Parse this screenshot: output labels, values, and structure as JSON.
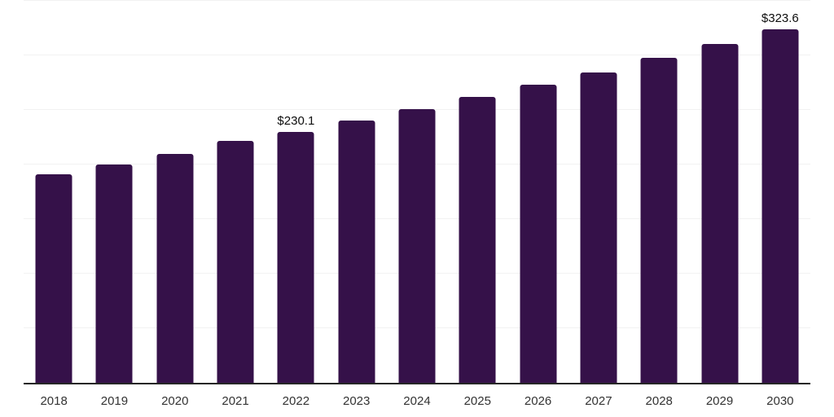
{
  "chart_data": {
    "type": "bar",
    "title": "",
    "xlabel": "",
    "ylabel": "",
    "categories": [
      "2018",
      "2019",
      "2020",
      "2021",
      "2022",
      "2023",
      "2024",
      "2025",
      "2026",
      "2027",
      "2028",
      "2029",
      "2030"
    ],
    "values": [
      190.9,
      200.3,
      209.9,
      221.6,
      230.1,
      240.5,
      250.5,
      261.8,
      272.9,
      284.6,
      297.4,
      310.3,
      323.6
    ],
    "data_labels": {
      "2022": "$230.1",
      "2030": "$323.6"
    },
    "ylim": [
      0,
      350
    ],
    "gridline_step": 50,
    "grid": true,
    "legend": false,
    "bar_color": "#351149",
    "gridline_color": "#f2f2f2",
    "axis_line_color": "#262626",
    "tick_label_color": "#333333",
    "data_label_color": "#0d0d0d"
  }
}
